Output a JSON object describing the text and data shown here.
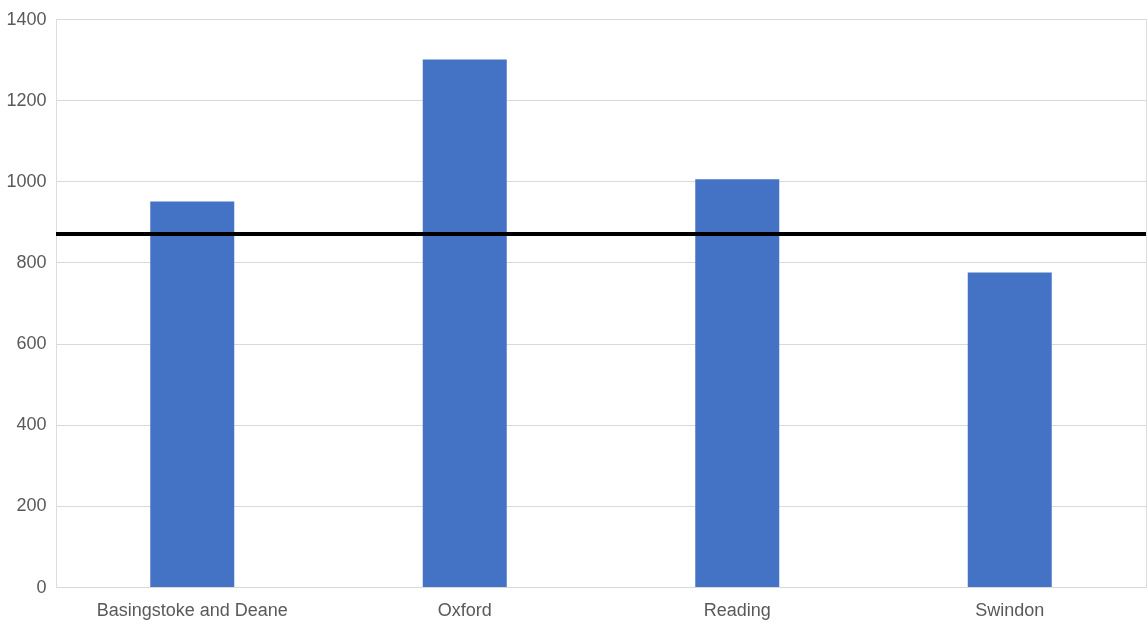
{
  "chart_data": {
    "type": "bar",
    "categories": [
      "Basingstoke and Deane",
      "Oxford",
      "Reading",
      "Swindon"
    ],
    "values": [
      950,
      1300,
      1005,
      775
    ],
    "color": "#4472c4",
    "ylim": [
      0,
      1400
    ],
    "yticks": [
      0,
      200,
      400,
      600,
      800,
      1000,
      1200,
      1400
    ],
    "grid": "y",
    "ref_lines": [
      {
        "axis": "y",
        "value": 870,
        "color": "#000000"
      }
    ]
  }
}
